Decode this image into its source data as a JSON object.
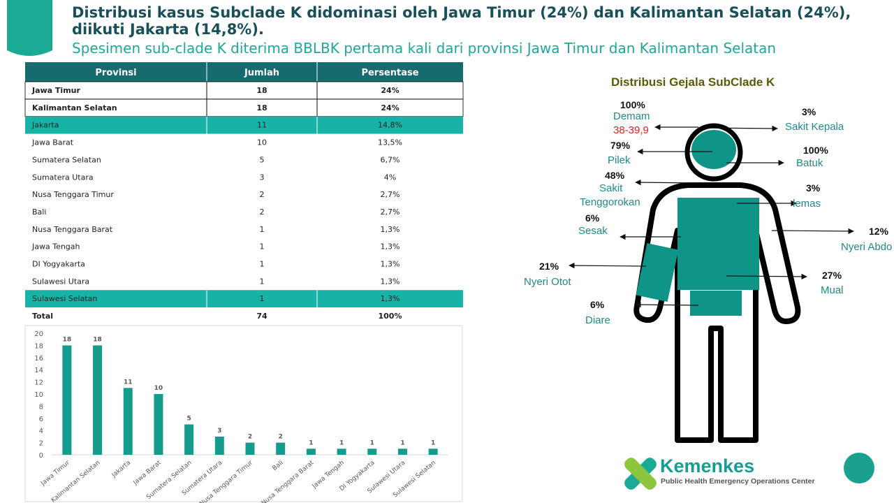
{
  "header": {
    "title_lines": [
      "Distribusi kasus Subclade K didominasi oleh Jawa Timur (24%) dan Kalimantan Selatan (24%),",
      "diikuti Jakarta (14,8%)."
    ],
    "subtitle": "Spesimen sub-clade K diterima BBLBK pertama kali dari provinsi Jawa Timur dan Kalimantan Selatan"
  },
  "table": {
    "columns": [
      "Provinsi",
      "Jumlah",
      "Persentase"
    ],
    "rows": [
      [
        "Jawa Timur",
        18,
        "24%"
      ],
      [
        "Kalimantan Selatan",
        18,
        "24%"
      ],
      [
        "Jakarta",
        11,
        "14,8%"
      ],
      [
        "Jawa Barat",
        10,
        "13,5%"
      ],
      [
        "Sumatera Selatan",
        5,
        "6,7%"
      ],
      [
        "Sumatera Utara",
        3,
        "4%"
      ],
      [
        "Nusa Tenggara Timur",
        2,
        "2,7%"
      ],
      [
        "Bali",
        2,
        "2,7%"
      ],
      [
        "Nusa Tenggara Barat",
        1,
        "1,3%"
      ],
      [
        "Jawa Tengah",
        1,
        "1,3%"
      ],
      [
        "DI Yogyakarta",
        1,
        "1,3%"
      ],
      [
        "Sulawesi Utara",
        1,
        "1,3%"
      ],
      [
        "Sulawesi Selatan",
        1,
        "1,3%"
      ],
      [
        "Total",
        74,
        "100%"
      ]
    ]
  },
  "chart_data": {
    "type": "bar",
    "categories": [
      "Jawa Timur",
      "Kalimantan Selatan",
      "Jakarta",
      "Jawa Barat",
      "Sumatera Selatan",
      "Sumatera Utara",
      "Nusa Tenggara Timur",
      "Bali",
      "Nusa Tenggara Barat",
      "Jawa Tengah",
      "DI Yogyakarta",
      "Sulawesi Utara",
      "Sulawesi Selatan"
    ],
    "values": [
      18,
      18,
      11,
      10,
      5,
      3,
      2,
      2,
      1,
      1,
      1,
      1,
      1
    ],
    "color": "#149c8c",
    "ylim": [
      0,
      20
    ],
    "yticks": [
      0,
      2,
      4,
      6,
      8,
      10,
      12,
      14,
      16,
      18,
      20
    ],
    "grid": false
  },
  "symptoms": {
    "title": "Distribusi Gejala SubClade K",
    "items": [
      {
        "pct": "100%",
        "label": [
          "Demam"
        ],
        "note": "38-39,9"
      },
      {
        "pct": "3%",
        "label": [
          "Sakit Kepala"
        ]
      },
      {
        "pct": "79%",
        "label": [
          "Pilek"
        ]
      },
      {
        "pct": "100%",
        "label": [
          "Batuk"
        ]
      },
      {
        "pct": "48%",
        "label": [
          "Sakit",
          "Tenggorokan"
        ]
      },
      {
        "pct": "3%",
        "label": [
          "lemas"
        ]
      },
      {
        "pct": "6%",
        "label": [
          "Sesak"
        ]
      },
      {
        "pct": "12%",
        "label": [
          "Nyeri Abdo"
        ]
      },
      {
        "pct": "21%",
        "label": [
          "Nyeri Otot"
        ]
      },
      {
        "pct": "27%",
        "label": [
          "Mual"
        ]
      },
      {
        "pct": "6%",
        "label": [
          "Diare"
        ]
      }
    ]
  },
  "logo": {
    "name": "Kemenkes",
    "tagline": "Public Health Emergency Operations Center"
  }
}
